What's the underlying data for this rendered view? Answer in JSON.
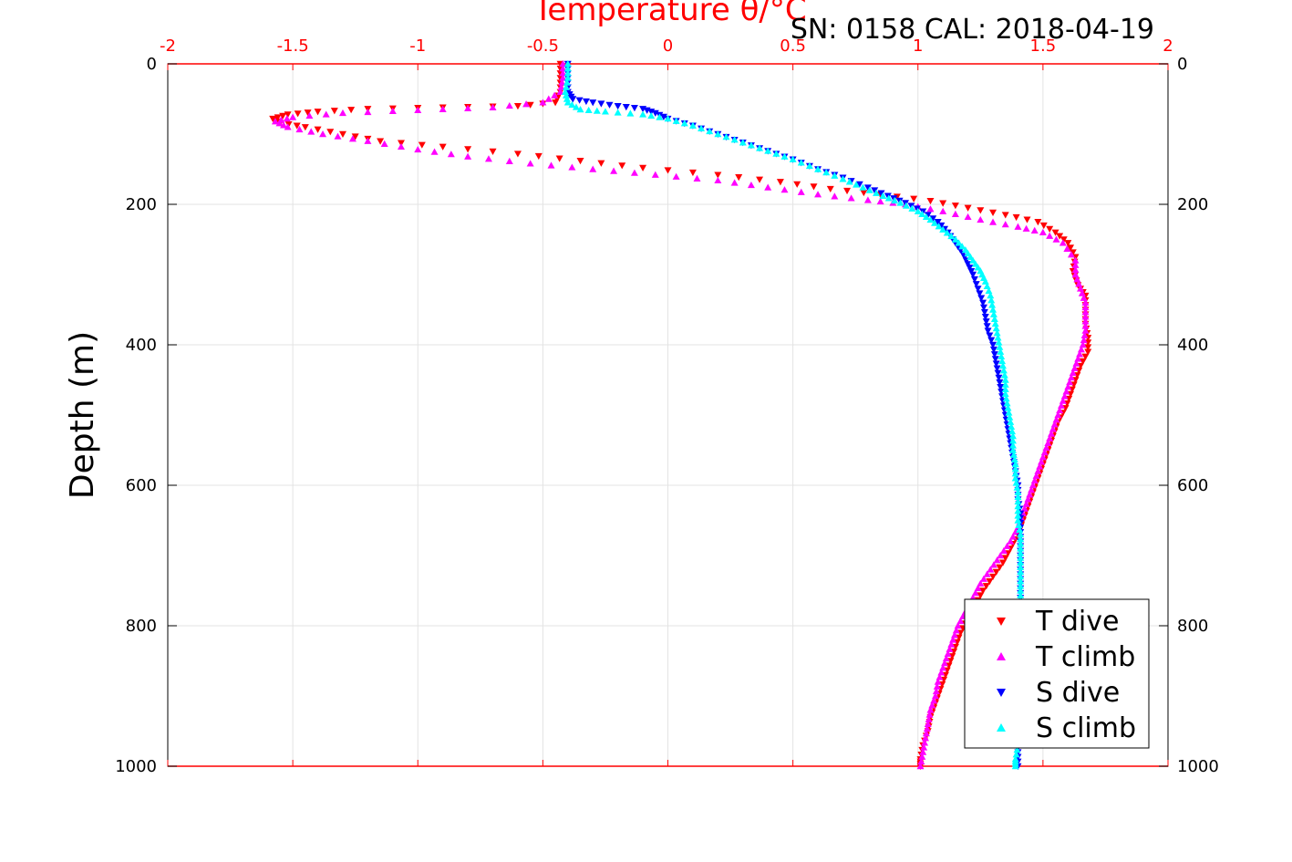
{
  "chart_data": {
    "type": "scatter",
    "title": "Temperature θ/°C",
    "annotation": "SN: 0158  CAL: 2018-04-19",
    "xlabel": "Temperature θ/°C",
    "ylabel": "Depth (m)",
    "xlim": [
      -2,
      2
    ],
    "ylim": [
      0,
      1000
    ],
    "y_reversed": true,
    "x_axis_location": "top",
    "x_ticks": [
      "-2",
      "-1.5",
      "-1",
      "-0.5",
      "0",
      "0.5",
      "1",
      "1.5",
      "2"
    ],
    "y_ticks": [
      "0",
      "200",
      "400",
      "600",
      "800",
      "1000"
    ],
    "grid": true,
    "legend_position": "bottom-right",
    "colors": {
      "axis_top": "#ff0000",
      "axis_bottom": "#ff0000",
      "grid": "#e0e0e0"
    },
    "series": [
      {
        "name": "T dive",
        "marker": "triangle-down",
        "color": "#ff0000",
        "points": [
          [
            -0.43,
            0
          ],
          [
            -0.43,
            20
          ],
          [
            -0.43,
            40
          ],
          [
            -0.45,
            55
          ],
          [
            -0.6,
            60
          ],
          [
            -0.9,
            62
          ],
          [
            -1.2,
            64
          ],
          [
            -1.4,
            68
          ],
          [
            -1.52,
            72
          ],
          [
            -1.58,
            78
          ],
          [
            -1.55,
            84
          ],
          [
            -1.45,
            90
          ],
          [
            -1.3,
            100
          ],
          [
            -1.15,
            110
          ],
          [
            -0.9,
            118
          ],
          [
            -0.6,
            128
          ],
          [
            -0.35,
            138
          ],
          [
            -0.1,
            148
          ],
          [
            0.2,
            158
          ],
          [
            0.45,
            168
          ],
          [
            0.65,
            178
          ],
          [
            0.85,
            186
          ],
          [
            1.05,
            195
          ],
          [
            1.2,
            205
          ],
          [
            1.35,
            215
          ],
          [
            1.48,
            225
          ],
          [
            1.55,
            240
          ],
          [
            1.6,
            255
          ],
          [
            1.63,
            275
          ],
          [
            1.62,
            295
          ],
          [
            1.64,
            315
          ],
          [
            1.67,
            330
          ],
          [
            1.67,
            350
          ],
          [
            1.67,
            370
          ],
          [
            1.68,
            390
          ],
          [
            1.68,
            410
          ],
          [
            1.65,
            430
          ],
          [
            1.63,
            450
          ],
          [
            1.61,
            470
          ],
          [
            1.59,
            490
          ],
          [
            1.56,
            510
          ],
          [
            1.54,
            530
          ],
          [
            1.52,
            550
          ],
          [
            1.5,
            570
          ],
          [
            1.48,
            590
          ],
          [
            1.46,
            610
          ],
          [
            1.44,
            630
          ],
          [
            1.42,
            650
          ],
          [
            1.4,
            670
          ],
          [
            1.37,
            690
          ],
          [
            1.34,
            710
          ],
          [
            1.3,
            730
          ],
          [
            1.26,
            750
          ],
          [
            1.23,
            770
          ],
          [
            1.2,
            790
          ],
          [
            1.17,
            810
          ],
          [
            1.15,
            830
          ],
          [
            1.13,
            850
          ],
          [
            1.11,
            870
          ],
          [
            1.09,
            890
          ],
          [
            1.07,
            910
          ],
          [
            1.05,
            930
          ],
          [
            1.04,
            950
          ],
          [
            1.02,
            970
          ],
          [
            1.01,
            990
          ],
          [
            1.01,
            1000
          ]
        ]
      },
      {
        "name": "T climb",
        "marker": "triangle-up",
        "color": "#ff00ff",
        "points": [
          [
            -0.42,
            0
          ],
          [
            -0.42,
            20
          ],
          [
            -0.43,
            40
          ],
          [
            -0.5,
            55
          ],
          [
            -0.7,
            62
          ],
          [
            -1.0,
            66
          ],
          [
            -1.3,
            70
          ],
          [
            -1.5,
            76
          ],
          [
            -1.57,
            82
          ],
          [
            -1.52,
            90
          ],
          [
            -1.38,
            100
          ],
          [
            -1.2,
            110
          ],
          [
            -1.0,
            122
          ],
          [
            -0.8,
            132
          ],
          [
            -0.55,
            142
          ],
          [
            -0.3,
            150
          ],
          [
            -0.05,
            158
          ],
          [
            0.2,
            166
          ],
          [
            0.4,
            176
          ],
          [
            0.6,
            186
          ],
          [
            0.8,
            194
          ],
          [
            0.95,
            200
          ],
          [
            1.1,
            210
          ],
          [
            1.25,
            222
          ],
          [
            1.4,
            232
          ],
          [
            1.5,
            240
          ],
          [
            1.58,
            255
          ],
          [
            1.63,
            280
          ],
          [
            1.63,
            300
          ],
          [
            1.65,
            320
          ],
          [
            1.67,
            340
          ],
          [
            1.67,
            360
          ],
          [
            1.67,
            380
          ],
          [
            1.66,
            400
          ],
          [
            1.64,
            420
          ],
          [
            1.62,
            440
          ],
          [
            1.6,
            460
          ],
          [
            1.58,
            480
          ],
          [
            1.56,
            500
          ],
          [
            1.54,
            520
          ],
          [
            1.52,
            540
          ],
          [
            1.5,
            560
          ],
          [
            1.48,
            580
          ],
          [
            1.46,
            600
          ],
          [
            1.44,
            620
          ],
          [
            1.42,
            640
          ],
          [
            1.4,
            660
          ],
          [
            1.37,
            680
          ],
          [
            1.33,
            700
          ],
          [
            1.29,
            720
          ],
          [
            1.25,
            740
          ],
          [
            1.22,
            760
          ],
          [
            1.19,
            780
          ],
          [
            1.16,
            800
          ],
          [
            1.14,
            820
          ],
          [
            1.12,
            840
          ],
          [
            1.1,
            860
          ],
          [
            1.08,
            880
          ],
          [
            1.07,
            900
          ],
          [
            1.05,
            920
          ],
          [
            1.04,
            940
          ],
          [
            1.03,
            960
          ],
          [
            1.02,
            980
          ],
          [
            1.01,
            1000
          ]
        ]
      },
      {
        "name": "S dive",
        "marker": "triangle-down",
        "color": "#0000ff",
        "points": [
          [
            -0.4,
            0
          ],
          [
            -0.4,
            20
          ],
          [
            -0.4,
            40
          ],
          [
            -0.38,
            50
          ],
          [
            -0.3,
            55
          ],
          [
            -0.2,
            60
          ],
          [
            -0.1,
            64
          ],
          [
            -0.05,
            70
          ],
          [
            0.0,
            78
          ],
          [
            0.1,
            88
          ],
          [
            0.2,
            100
          ],
          [
            0.3,
            112
          ],
          [
            0.4,
            124
          ],
          [
            0.5,
            136
          ],
          [
            0.6,
            150
          ],
          [
            0.7,
            162
          ],
          [
            0.8,
            176
          ],
          [
            0.88,
            188
          ],
          [
            0.95,
            198
          ],
          [
            1.02,
            210
          ],
          [
            1.08,
            225
          ],
          [
            1.12,
            240
          ],
          [
            1.15,
            255
          ],
          [
            1.18,
            270
          ],
          [
            1.2,
            285
          ],
          [
            1.22,
            300
          ],
          [
            1.24,
            320
          ],
          [
            1.26,
            340
          ],
          [
            1.27,
            360
          ],
          [
            1.28,
            380
          ],
          [
            1.3,
            400
          ],
          [
            1.31,
            420
          ],
          [
            1.32,
            440
          ],
          [
            1.33,
            460
          ],
          [
            1.34,
            480
          ],
          [
            1.35,
            500
          ],
          [
            1.36,
            520
          ],
          [
            1.37,
            540
          ],
          [
            1.38,
            560
          ],
          [
            1.39,
            580
          ],
          [
            1.4,
            600
          ],
          [
            1.4,
            620
          ],
          [
            1.41,
            640
          ],
          [
            1.41,
            660
          ],
          [
            1.41,
            680
          ],
          [
            1.41,
            700
          ],
          [
            1.41,
            720
          ],
          [
            1.41,
            740
          ],
          [
            1.41,
            760
          ],
          [
            1.41,
            780
          ],
          [
            1.41,
            800
          ],
          [
            1.41,
            820
          ],
          [
            1.41,
            840
          ],
          [
            1.41,
            860
          ],
          [
            1.41,
            880
          ],
          [
            1.41,
            900
          ],
          [
            1.41,
            920
          ],
          [
            1.4,
            940
          ],
          [
            1.4,
            960
          ],
          [
            1.4,
            980
          ],
          [
            1.4,
            1000
          ]
        ]
      },
      {
        "name": "S climb",
        "marker": "triangle-up",
        "color": "#00ffff",
        "points": [
          [
            -0.4,
            0
          ],
          [
            -0.4,
            20
          ],
          [
            -0.41,
            40
          ],
          [
            -0.4,
            55
          ],
          [
            -0.35,
            65
          ],
          [
            -0.25,
            68
          ],
          [
            -0.1,
            72
          ],
          [
            0.0,
            78
          ],
          [
            0.1,
            88
          ],
          [
            0.2,
            100
          ],
          [
            0.3,
            112
          ],
          [
            0.4,
            124
          ],
          [
            0.5,
            136
          ],
          [
            0.6,
            150
          ],
          [
            0.7,
            164
          ],
          [
            0.78,
            176
          ],
          [
            0.86,
            188
          ],
          [
            0.93,
            198
          ],
          [
            1.0,
            210
          ],
          [
            1.05,
            222
          ],
          [
            1.1,
            236
          ],
          [
            1.15,
            250
          ],
          [
            1.19,
            265
          ],
          [
            1.22,
            280
          ],
          [
            1.25,
            295
          ],
          [
            1.27,
            310
          ],
          [
            1.29,
            330
          ],
          [
            1.3,
            350
          ],
          [
            1.31,
            370
          ],
          [
            1.32,
            390
          ],
          [
            1.33,
            410
          ],
          [
            1.34,
            430
          ],
          [
            1.35,
            450
          ],
          [
            1.35,
            470
          ],
          [
            1.36,
            490
          ],
          [
            1.37,
            510
          ],
          [
            1.38,
            530
          ],
          [
            1.38,
            550
          ],
          [
            1.39,
            570
          ],
          [
            1.39,
            590
          ],
          [
            1.4,
            610
          ],
          [
            1.4,
            630
          ],
          [
            1.4,
            650
          ],
          [
            1.41,
            670
          ],
          [
            1.41,
            690
          ],
          [
            1.41,
            710
          ],
          [
            1.41,
            730
          ],
          [
            1.41,
            750
          ],
          [
            1.41,
            770
          ],
          [
            1.41,
            790
          ],
          [
            1.41,
            810
          ],
          [
            1.41,
            830
          ],
          [
            1.41,
            850
          ],
          [
            1.41,
            870
          ],
          [
            1.41,
            890
          ],
          [
            1.41,
            910
          ],
          [
            1.4,
            930
          ],
          [
            1.4,
            950
          ],
          [
            1.4,
            970
          ],
          [
            1.39,
            990
          ],
          [
            1.39,
            1000
          ]
        ]
      }
    ]
  }
}
